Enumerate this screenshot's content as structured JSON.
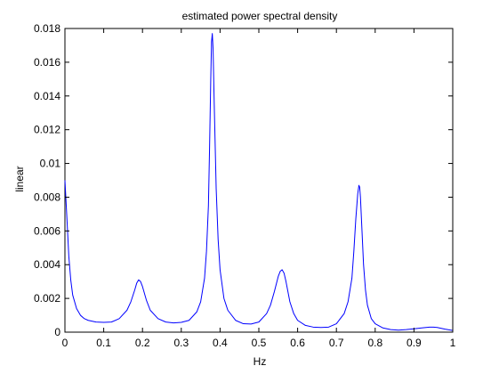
{
  "chart_data": {
    "type": "line",
    "title": "estimated power spectral density",
    "xlabel": "Hz",
    "ylabel": "linear",
    "xlim": [
      0,
      1
    ],
    "ylim": [
      0,
      0.018
    ],
    "x_ticks": [
      0,
      0.1,
      0.2,
      0.3,
      0.4,
      0.5,
      0.6,
      0.7,
      0.8,
      0.9,
      1
    ],
    "x_tick_labels": [
      "0",
      "0.1",
      "0.2",
      "0.3",
      "0.4",
      "0.5",
      "0.6",
      "0.7",
      "0.8",
      "0.9",
      "1"
    ],
    "y_ticks": [
      0,
      0.002,
      0.004,
      0.006,
      0.008,
      0.01,
      0.012,
      0.014,
      0.016,
      0.018
    ],
    "y_tick_labels": [
      "0",
      "0.002",
      "0.004",
      "0.006",
      "0.008",
      "0.01",
      "0.012",
      "0.014",
      "0.016",
      "0.018"
    ],
    "grid": false,
    "line_color": "#0000ff",
    "series": [
      {
        "x": [
          0,
          0.005,
          0.01,
          0.015,
          0.02,
          0.03,
          0.04,
          0.05,
          0.06,
          0.08,
          0.1,
          0.12,
          0.14,
          0.16,
          0.17,
          0.18,
          0.185,
          0.19,
          0.195,
          0.2,
          0.21,
          0.22,
          0.24,
          0.26,
          0.28,
          0.3,
          0.32,
          0.34,
          0.35,
          0.36,
          0.365,
          0.37,
          0.373,
          0.376,
          0.378,
          0.38,
          0.382,
          0.385,
          0.39,
          0.395,
          0.4,
          0.41,
          0.42,
          0.44,
          0.46,
          0.48,
          0.5,
          0.52,
          0.53,
          0.54,
          0.55,
          0.555,
          0.56,
          0.565,
          0.57,
          0.58,
          0.59,
          0.6,
          0.62,
          0.64,
          0.66,
          0.68,
          0.7,
          0.72,
          0.73,
          0.74,
          0.745,
          0.75,
          0.755,
          0.758,
          0.76,
          0.762,
          0.765,
          0.77,
          0.775,
          0.78,
          0.79,
          0.8,
          0.82,
          0.84,
          0.86,
          0.88,
          0.9,
          0.92,
          0.94,
          0.95,
          0.96,
          0.98,
          1
        ],
        "y": [
          0.009,
          0.0068,
          0.0045,
          0.0031,
          0.0022,
          0.0014,
          0.001,
          0.0008,
          0.0007,
          0.0006,
          0.00058,
          0.0006,
          0.0008,
          0.0013,
          0.0018,
          0.0025,
          0.0029,
          0.0031,
          0.003,
          0.0027,
          0.0019,
          0.0013,
          0.0008,
          0.0006,
          0.00055,
          0.00058,
          0.0007,
          0.0012,
          0.0018,
          0.0032,
          0.0048,
          0.0075,
          0.011,
          0.015,
          0.0172,
          0.0177,
          0.0168,
          0.0135,
          0.0085,
          0.0055,
          0.0037,
          0.002,
          0.0013,
          0.0007,
          0.0005,
          0.00048,
          0.0006,
          0.0011,
          0.0016,
          0.0024,
          0.0033,
          0.0036,
          0.0037,
          0.0035,
          0.003,
          0.0018,
          0.0011,
          0.0007,
          0.0004,
          0.0003,
          0.00028,
          0.0003,
          0.0005,
          0.0011,
          0.0018,
          0.0032,
          0.0048,
          0.0067,
          0.0082,
          0.0087,
          0.0086,
          0.008,
          0.0065,
          0.004,
          0.0025,
          0.0016,
          0.0008,
          0.0005,
          0.00025,
          0.00015,
          0.00012,
          0.00015,
          0.0002,
          0.00025,
          0.0003,
          0.0003,
          0.00028,
          0.00018,
          0.0001
        ]
      }
    ]
  }
}
